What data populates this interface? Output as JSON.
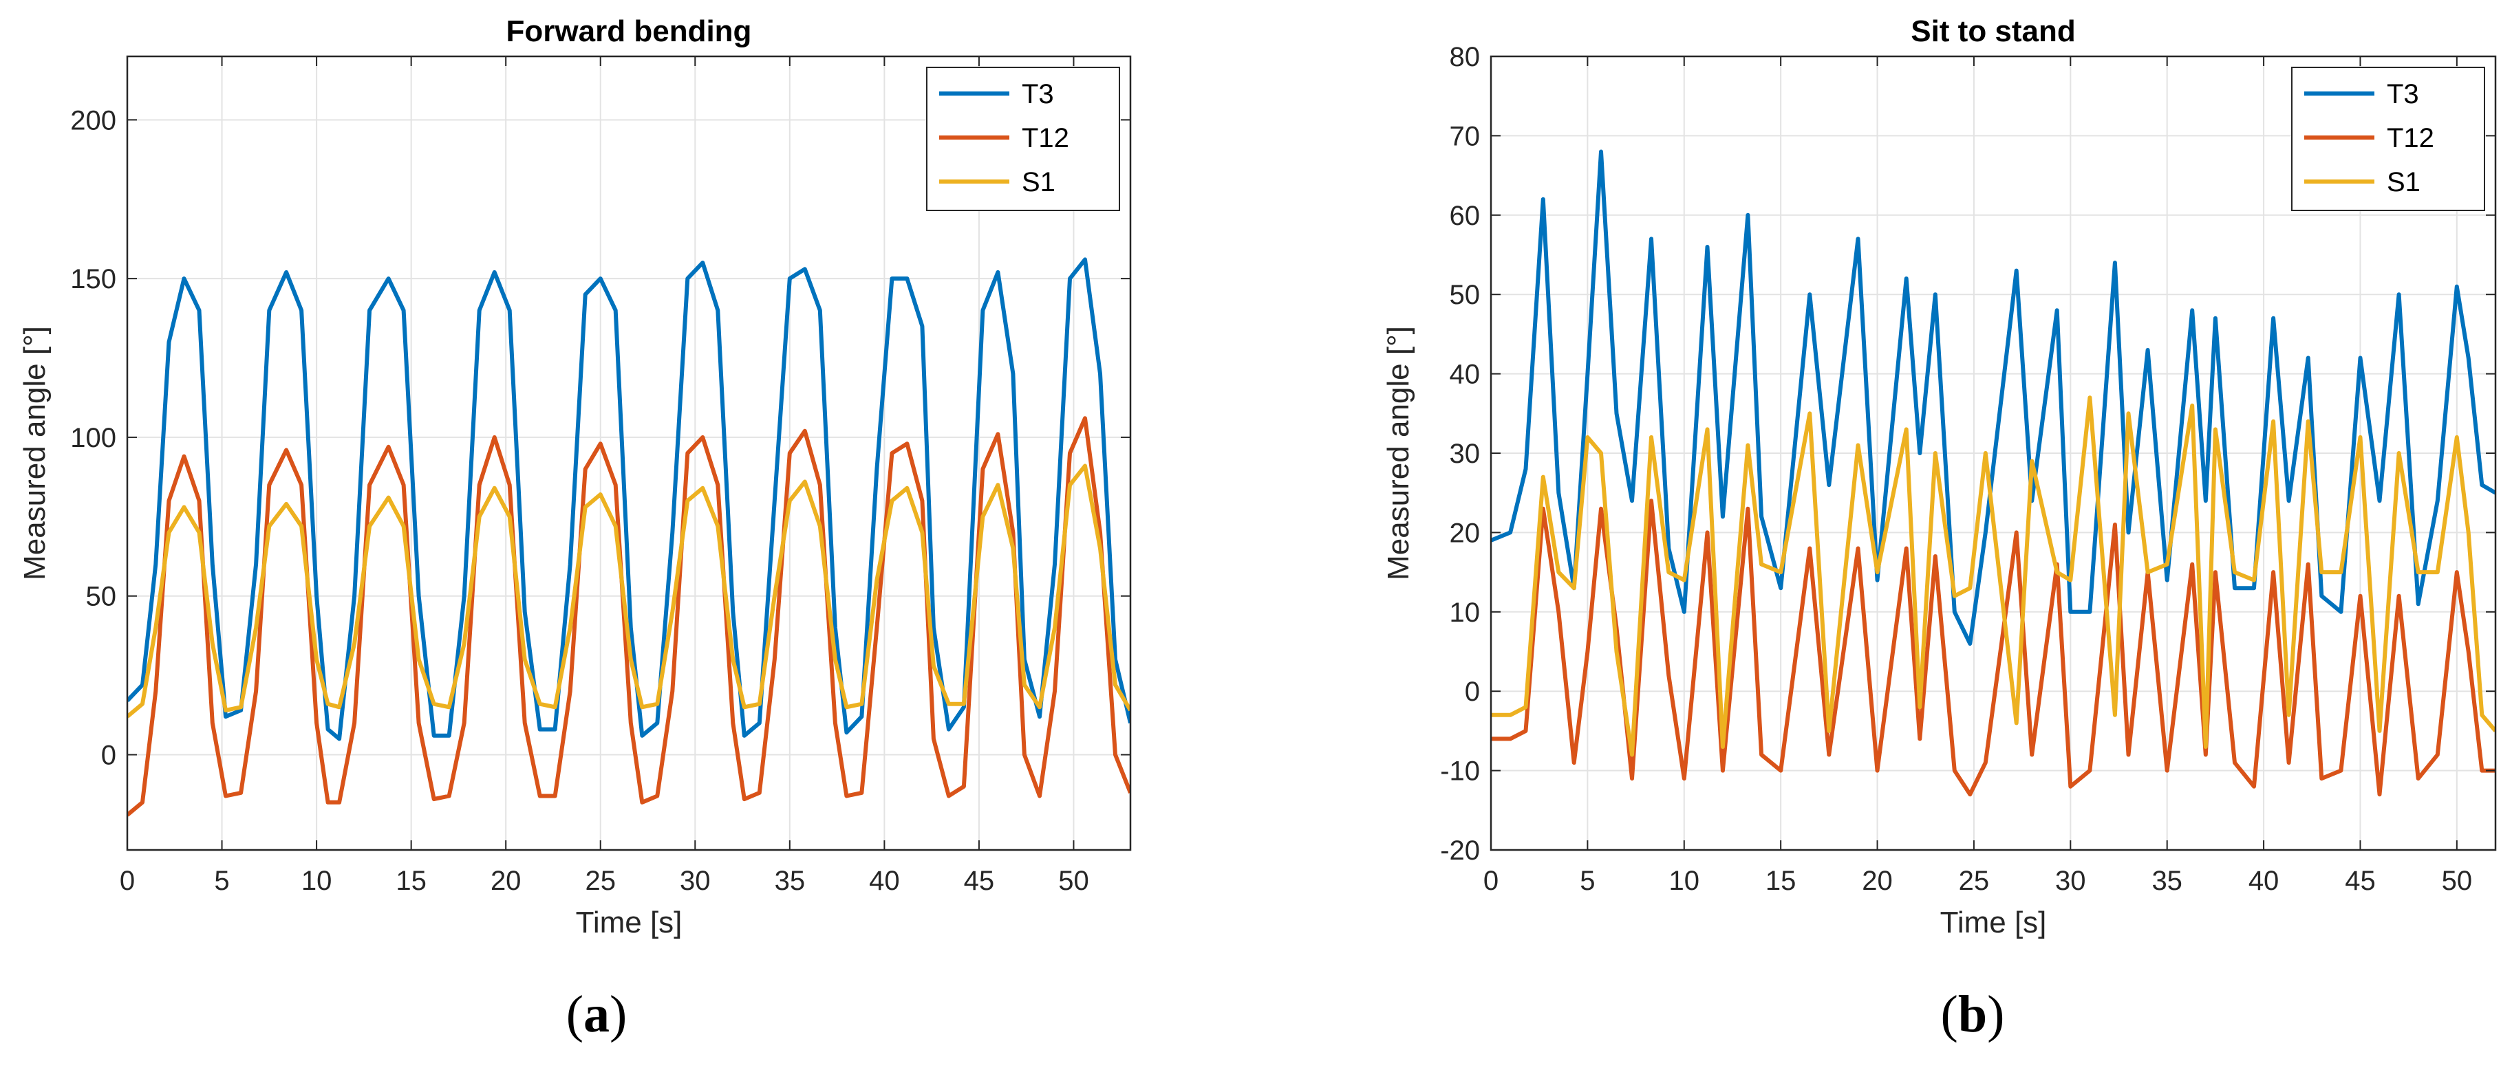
{
  "chart_data": [
    {
      "type": "line",
      "title": "Forward bending",
      "xlabel": "Time [s]",
      "ylabel": "Measured angle [°]",
      "xlim": [
        0,
        53
      ],
      "ylim": [
        -30,
        220
      ],
      "xticks": [
        0,
        5,
        10,
        15,
        20,
        25,
        30,
        35,
        40,
        45,
        50
      ],
      "yticks": [
        0,
        50,
        100,
        150,
        200
      ],
      "grid": true,
      "legend_position": "top-right",
      "caption": "a",
      "series": [
        {
          "name": "T3",
          "color": "#0072BD",
          "x": [
            0,
            0.8,
            1.5,
            2.2,
            3.0,
            3.8,
            4.5,
            5.2,
            6.0,
            6.8,
            7.5,
            8.4,
            9.2,
            10.0,
            10.6,
            11.2,
            12.0,
            12.8,
            13.8,
            14.6,
            15.4,
            16.2,
            17.0,
            17.8,
            18.6,
            19.4,
            20.2,
            21.0,
            21.8,
            22.6,
            23.4,
            24.2,
            25.0,
            25.8,
            26.6,
            27.2,
            28.0,
            28.8,
            29.6,
            30.4,
            31.2,
            32.0,
            32.6,
            33.4,
            34.2,
            35.0,
            35.8,
            36.6,
            37.4,
            38.0,
            38.8,
            39.6,
            40.4,
            41.2,
            42.0,
            42.6,
            43.4,
            44.2,
            45.2,
            46.0,
            46.8,
            47.4,
            48.2,
            49.0,
            49.8,
            50.6,
            51.4,
            52.2,
            53.0
          ],
          "y": [
            17,
            22,
            60,
            130,
            150,
            140,
            60,
            12,
            14,
            60,
            140,
            152,
            140,
            50,
            8,
            5,
            50,
            140,
            150,
            140,
            50,
            6,
            6,
            50,
            140,
            152,
            140,
            45,
            8,
            8,
            60,
            145,
            150,
            140,
            40,
            6,
            10,
            70,
            150,
            155,
            140,
            45,
            6,
            10,
            80,
            150,
            153,
            140,
            40,
            7,
            12,
            90,
            150,
            150,
            135,
            40,
            8,
            15,
            140,
            152,
            120,
            30,
            12,
            60,
            150,
            156,
            120,
            30,
            10
          ]
        },
        {
          "name": "T12",
          "color": "#D95319",
          "x": [
            0,
            0.8,
            1.5,
            2.2,
            3.0,
            3.8,
            4.5,
            5.2,
            6.0,
            6.8,
            7.5,
            8.4,
            9.2,
            10.0,
            10.6,
            11.2,
            12.0,
            12.8,
            13.8,
            14.6,
            15.4,
            16.2,
            17.0,
            17.8,
            18.6,
            19.4,
            20.2,
            21.0,
            21.8,
            22.6,
            23.4,
            24.2,
            25.0,
            25.8,
            26.6,
            27.2,
            28.0,
            28.8,
            29.6,
            30.4,
            31.2,
            32.0,
            32.6,
            33.4,
            34.2,
            35.0,
            35.8,
            36.6,
            37.4,
            38.0,
            38.8,
            39.6,
            40.4,
            41.2,
            42.0,
            42.6,
            43.4,
            44.2,
            45.2,
            46.0,
            46.8,
            47.4,
            48.2,
            49.0,
            49.8,
            50.6,
            51.4,
            52.2,
            53.0
          ],
          "y": [
            -19,
            -15,
            20,
            80,
            94,
            80,
            10,
            -13,
            -12,
            20,
            85,
            96,
            85,
            10,
            -15,
            -15,
            10,
            85,
            97,
            85,
            10,
            -14,
            -13,
            10,
            85,
            100,
            85,
            10,
            -13,
            -13,
            20,
            90,
            98,
            85,
            10,
            -15,
            -13,
            20,
            95,
            100,
            85,
            10,
            -14,
            -12,
            30,
            95,
            102,
            85,
            10,
            -13,
            -12,
            40,
            95,
            98,
            80,
            5,
            -13,
            -10,
            90,
            101,
            70,
            0,
            -13,
            20,
            95,
            106,
            70,
            0,
            -12
          ]
        },
        {
          "name": "S1",
          "color": "#EDB120",
          "x": [
            0,
            0.8,
            1.5,
            2.2,
            3.0,
            3.8,
            4.5,
            5.2,
            6.0,
            6.8,
            7.5,
            8.4,
            9.2,
            10.0,
            10.6,
            11.2,
            12.0,
            12.8,
            13.8,
            14.6,
            15.4,
            16.2,
            17.0,
            17.8,
            18.6,
            19.4,
            20.2,
            21.0,
            21.8,
            22.6,
            23.4,
            24.2,
            25.0,
            25.8,
            26.6,
            27.2,
            28.0,
            28.8,
            29.6,
            30.4,
            31.2,
            32.0,
            32.6,
            33.4,
            34.2,
            35.0,
            35.8,
            36.6,
            37.4,
            38.0,
            38.8,
            39.6,
            40.4,
            41.2,
            42.0,
            42.6,
            43.4,
            44.2,
            45.2,
            46.0,
            46.8,
            47.4,
            48.2,
            49.0,
            49.8,
            50.6,
            51.4,
            52.2,
            53.0
          ],
          "y": [
            12,
            16,
            40,
            70,
            78,
            70,
            35,
            14,
            15,
            40,
            72,
            79,
            72,
            30,
            16,
            15,
            35,
            72,
            81,
            72,
            30,
            16,
            15,
            35,
            75,
            84,
            75,
            30,
            16,
            15,
            40,
            78,
            82,
            72,
            30,
            15,
            16,
            45,
            80,
            84,
            72,
            30,
            15,
            16,
            50,
            80,
            86,
            72,
            30,
            15,
            16,
            55,
            80,
            84,
            70,
            28,
            16,
            16,
            75,
            85,
            65,
            22,
            15,
            40,
            85,
            91,
            65,
            22,
            14
          ]
        }
      ]
    },
    {
      "type": "line",
      "title": "Sit to stand",
      "xlabel": "Time [s]",
      "ylabel": "Measured angle [°]",
      "xlim": [
        0,
        52
      ],
      "ylim": [
        -20,
        80
      ],
      "xticks": [
        0,
        5,
        10,
        15,
        20,
        25,
        30,
        35,
        40,
        45,
        50
      ],
      "yticks": [
        -20,
        -10,
        0,
        10,
        20,
        30,
        40,
        50,
        60,
        70,
        80
      ],
      "grid": true,
      "legend_position": "top-right",
      "caption": "b",
      "series": [
        {
          "name": "T3",
          "color": "#0072BD",
          "x": [
            0,
            1.0,
            1.8,
            2.7,
            3.5,
            4.3,
            5.0,
            5.7,
            6.5,
            7.3,
            8.3,
            9.2,
            10.0,
            11.2,
            12.0,
            13.3,
            14.0,
            15.0,
            16.5,
            17.5,
            19.0,
            20.0,
            21.5,
            22.2,
            23.0,
            24.0,
            24.8,
            25.6,
            27.2,
            28.0,
            29.3,
            30.0,
            31.0,
            32.3,
            33.0,
            34.0,
            35.0,
            36.3,
            37.0,
            37.5,
            38.5,
            39.5,
            40.5,
            41.3,
            42.3,
            43.0,
            44.0,
            45.0,
            46.0,
            47.0,
            48.0,
            49.0,
            50.0,
            50.6,
            51.3,
            52.0
          ],
          "y": [
            19,
            20,
            28,
            62,
            25,
            13,
            40,
            68,
            35,
            24,
            57,
            18,
            10,
            56,
            22,
            60,
            22,
            13,
            50,
            26,
            57,
            14,
            52,
            30,
            50,
            10,
            6,
            20,
            53,
            24,
            48,
            10,
            10,
            54,
            20,
            43,
            14,
            48,
            24,
            47,
            13,
            13,
            47,
            24,
            42,
            12,
            10,
            42,
            24,
            50,
            11,
            24,
            51,
            42,
            26,
            25
          ]
        },
        {
          "name": "T12",
          "color": "#D95319",
          "x": [
            0,
            1.0,
            1.8,
            2.7,
            3.5,
            4.3,
            5.0,
            5.7,
            6.5,
            7.3,
            8.3,
            9.2,
            10.0,
            11.2,
            12.0,
            13.3,
            14.0,
            15.0,
            16.5,
            17.5,
            19.0,
            20.0,
            21.5,
            22.2,
            23.0,
            24.0,
            24.8,
            25.6,
            27.2,
            28.0,
            29.3,
            30.0,
            31.0,
            32.3,
            33.0,
            34.0,
            35.0,
            36.3,
            37.0,
            37.5,
            38.5,
            39.5,
            40.5,
            41.3,
            42.3,
            43.0,
            44.0,
            45.0,
            46.0,
            47.0,
            48.0,
            49.0,
            50.0,
            50.6,
            51.3,
            52.0
          ],
          "y": [
            -6,
            -6,
            -5,
            23,
            10,
            -9,
            5,
            23,
            8,
            -11,
            24,
            2,
            -11,
            20,
            -10,
            23,
            -8,
            -10,
            18,
            -8,
            18,
            -10,
            18,
            -6,
            17,
            -10,
            -13,
            -9,
            20,
            -8,
            16,
            -12,
            -10,
            21,
            -8,
            15,
            -10,
            16,
            -8,
            15,
            -9,
            -12,
            15,
            -9,
            16,
            -11,
            -10,
            12,
            -13,
            12,
            -11,
            -8,
            15,
            5,
            -10,
            -10
          ]
        },
        {
          "name": "S1",
          "color": "#EDB120",
          "x": [
            0,
            1.0,
            1.8,
            2.7,
            3.5,
            4.3,
            5.0,
            5.7,
            6.5,
            7.3,
            8.3,
            9.2,
            10.0,
            11.2,
            12.0,
            13.3,
            14.0,
            15.0,
            16.5,
            17.5,
            19.0,
            20.0,
            21.5,
            22.2,
            23.0,
            24.0,
            24.8,
            25.6,
            27.2,
            28.0,
            29.3,
            30.0,
            31.0,
            32.3,
            33.0,
            34.0,
            35.0,
            36.3,
            37.0,
            37.5,
            38.5,
            39.5,
            40.5,
            41.3,
            42.3,
            43.0,
            44.0,
            45.0,
            46.0,
            47.0,
            48.0,
            49.0,
            50.0,
            50.6,
            51.3,
            52.0
          ],
          "y": [
            -3,
            -3,
            -2,
            27,
            15,
            13,
            32,
            30,
            5,
            -8,
            32,
            15,
            14,
            33,
            -7,
            31,
            16,
            15,
            35,
            -5,
            31,
            15,
            33,
            -2,
            30,
            12,
            13,
            30,
            -4,
            29,
            15,
            14,
            37,
            -3,
            35,
            15,
            16,
            36,
            -7,
            33,
            15,
            14,
            34,
            -3,
            34,
            15,
            15,
            32,
            -5,
            30,
            15,
            15,
            32,
            20,
            -3,
            -5
          ]
        }
      ]
    }
  ]
}
